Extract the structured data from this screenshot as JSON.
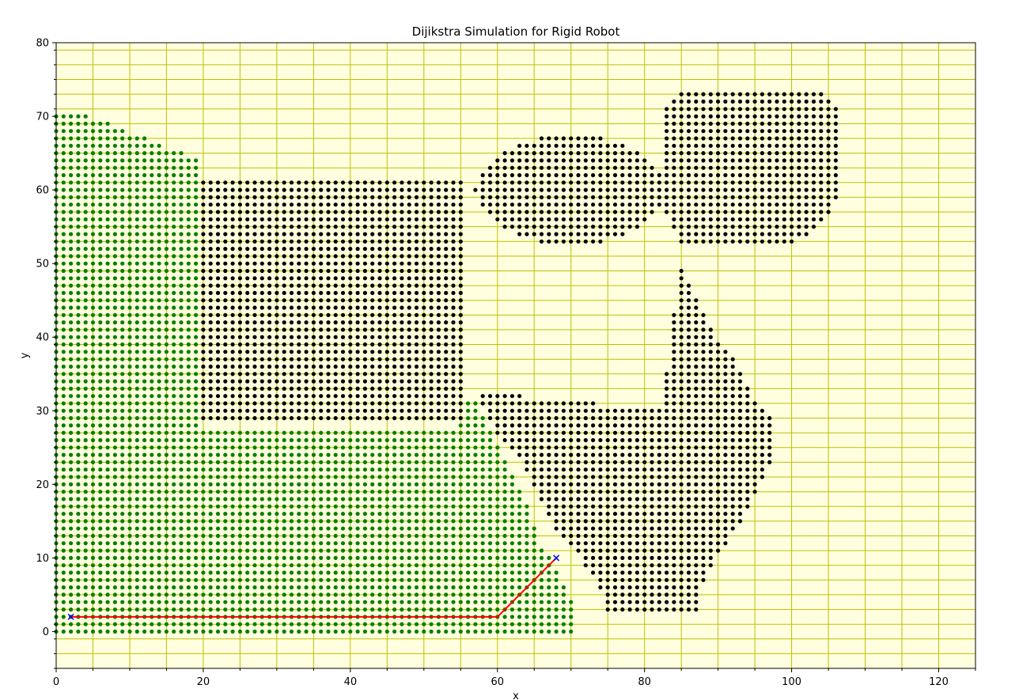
{
  "chart_data": {
    "type": "scatter",
    "title": "Dijikstra Simulation for Rigid Robot",
    "xlabel": "x",
    "ylabel": "y",
    "xlim": [
      0,
      125
    ],
    "ylim": [
      -5,
      80
    ],
    "x_ticks": [
      0,
      20,
      40,
      60,
      80,
      100,
      120
    ],
    "y_ticks": [
      0,
      10,
      20,
      30,
      40,
      50,
      60,
      70,
      80
    ],
    "grid": true,
    "grid_minor": true,
    "grid_color": "#bfbf00",
    "background": "#ffffe0",
    "series": [
      {
        "role": "explored",
        "color": "#008000",
        "regions": [
          {
            "kind": "polygon",
            "points": [
              [
                0,
                0
              ],
              [
                71,
                0
              ],
              [
                71,
                2
              ],
              [
                70,
                5
              ],
              [
                66,
                12
              ],
              [
                64,
                18
              ],
              [
                62,
                22
              ],
              [
                60,
                26
              ],
              [
                57,
                32
              ],
              [
                56,
                32
              ],
              [
                55,
                28
              ],
              [
                20,
                28
              ],
              [
                20,
                64
              ],
              [
                15,
                66
              ],
              [
                10,
                68
              ],
              [
                5,
                70
              ],
              [
                2,
                71
              ],
              [
                0,
                71
              ]
            ]
          }
        ]
      },
      {
        "role": "obstacle",
        "color": "#000000",
        "regions": [
          {
            "kind": "rect",
            "x": [
              20,
              55
            ],
            "y": [
              29,
              61
            ]
          },
          {
            "kind": "ellipse",
            "cx": 70,
            "cy": 60,
            "rx": 13,
            "ry": 7.5
          },
          {
            "kind": "polygon",
            "points": [
              [
                85,
                53
              ],
              [
                89,
                53
              ],
              [
                101,
                53
              ],
              [
                105,
                56
              ],
              [
                107,
                60
              ],
              [
                107,
                70
              ],
              [
                104,
                74
              ],
              [
                86,
                74
              ],
              [
                83,
                71
              ],
              [
                83,
                57
              ]
            ]
          },
          {
            "kind": "polygon",
            "points": [
              [
                57,
                33
              ],
              [
                62,
                33
              ],
              [
                64,
                32
              ],
              [
                72,
                32
              ],
              [
                74,
                31
              ],
              [
                83,
                31
              ],
              [
                83,
                35
              ],
              [
                84,
                43
              ],
              [
                85,
                50
              ],
              [
                88,
                44
              ],
              [
                90,
                40
              ],
              [
                93,
                36
              ],
              [
                95,
                32
              ],
              [
                97,
                30
              ],
              [
                98,
                25
              ],
              [
                96,
                20
              ],
              [
                94,
                16
              ],
              [
                92,
                13
              ],
              [
                90,
                10
              ],
              [
                88,
                6
              ],
              [
                88,
                3
              ],
              [
                75,
                3
              ],
              [
                74,
                6
              ],
              [
                72,
                9
              ],
              [
                70,
                12
              ],
              [
                68,
                14
              ],
              [
                66,
                18
              ],
              [
                64,
                22
              ],
              [
                62,
                25
              ],
              [
                60,
                27
              ]
            ]
          }
        ]
      }
    ],
    "path": {
      "name": "path",
      "color": "#ff0000",
      "marker_color": "#0000ff",
      "x": [
        2,
        60,
        68
      ],
      "y": [
        2,
        2,
        10
      ]
    }
  }
}
